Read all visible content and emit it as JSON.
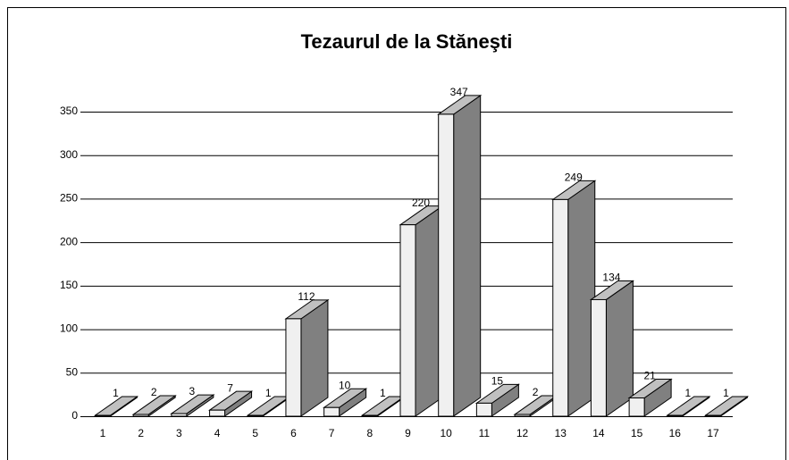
{
  "chart_data": {
    "type": "bar3d",
    "title": "Tezaurul de la Stăneşti",
    "categories": [
      "1",
      "2",
      "3",
      "4",
      "5",
      "6",
      "7",
      "8",
      "9",
      "10",
      "11",
      "12",
      "13",
      "14",
      "15",
      "16",
      "17"
    ],
    "values": [
      1,
      2,
      3,
      7,
      1,
      112,
      10,
      1,
      220,
      347,
      15,
      2,
      249,
      134,
      21,
      1,
      1
    ],
    "ylim": [
      0,
      350
    ],
    "yticks": [
      0,
      50,
      100,
      150,
      200,
      250,
      300,
      350
    ],
    "grid": true,
    "color": "#f0f0f0",
    "side_color": "#808080",
    "top_color": "#c0c0c0"
  }
}
